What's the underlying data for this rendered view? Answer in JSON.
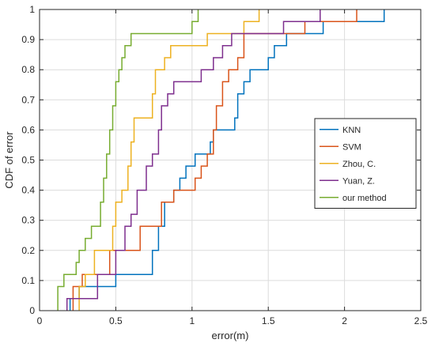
{
  "chart_data": {
    "type": "line",
    "step": true,
    "xlabel": "error(m)",
    "ylabel": "CDF of error",
    "xlim": [
      0,
      2.5
    ],
    "ylim": [
      0,
      1
    ],
    "xticks": [
      "0",
      "0.5",
      "1",
      "1.5",
      "2",
      "2.5"
    ],
    "yticks": [
      "0",
      "0.1",
      "0.2",
      "0.3",
      "0.4",
      "0.5",
      "0.6",
      "0.7",
      "0.8",
      "0.9",
      "1"
    ],
    "grid": true,
    "legend_position": "right",
    "series": [
      {
        "name": "KNN",
        "color": "#0072BD",
        "points": [
          [
            0.2,
            0
          ],
          [
            0.2,
            0.04
          ],
          [
            0.26,
            0.04
          ],
          [
            0.26,
            0.08
          ],
          [
            0.5,
            0.08
          ],
          [
            0.5,
            0.12
          ],
          [
            0.74,
            0.12
          ],
          [
            0.74,
            0.2
          ],
          [
            0.78,
            0.2
          ],
          [
            0.78,
            0.28
          ],
          [
            0.82,
            0.28
          ],
          [
            0.82,
            0.36
          ],
          [
            0.88,
            0.36
          ],
          [
            0.88,
            0.4
          ],
          [
            0.92,
            0.4
          ],
          [
            0.92,
            0.44
          ],
          [
            0.96,
            0.44
          ],
          [
            0.96,
            0.48
          ],
          [
            1.02,
            0.48
          ],
          [
            1.02,
            0.52
          ],
          [
            1.12,
            0.52
          ],
          [
            1.12,
            0.56
          ],
          [
            1.14,
            0.56
          ],
          [
            1.14,
            0.6
          ],
          [
            1.28,
            0.6
          ],
          [
            1.28,
            0.64
          ],
          [
            1.3,
            0.64
          ],
          [
            1.3,
            0.72
          ],
          [
            1.34,
            0.72
          ],
          [
            1.34,
            0.76
          ],
          [
            1.38,
            0.76
          ],
          [
            1.38,
            0.8
          ],
          [
            1.5,
            0.8
          ],
          [
            1.5,
            0.84
          ],
          [
            1.54,
            0.84
          ],
          [
            1.54,
            0.88
          ],
          [
            1.62,
            0.88
          ],
          [
            1.62,
            0.92
          ],
          [
            1.86,
            0.92
          ],
          [
            1.86,
            0.96
          ],
          [
            2.26,
            0.96
          ],
          [
            2.26,
            1
          ]
        ]
      },
      {
        "name": "SVM",
        "color": "#D95319",
        "points": [
          [
            0.22,
            0
          ],
          [
            0.22,
            0.08
          ],
          [
            0.28,
            0.08
          ],
          [
            0.28,
            0.12
          ],
          [
            0.46,
            0.12
          ],
          [
            0.46,
            0.2
          ],
          [
            0.66,
            0.2
          ],
          [
            0.66,
            0.28
          ],
          [
            0.8,
            0.28
          ],
          [
            0.8,
            0.36
          ],
          [
            0.88,
            0.36
          ],
          [
            0.88,
            0.4
          ],
          [
            1.02,
            0.4
          ],
          [
            1.02,
            0.44
          ],
          [
            1.06,
            0.44
          ],
          [
            1.06,
            0.48
          ],
          [
            1.1,
            0.48
          ],
          [
            1.1,
            0.52
          ],
          [
            1.14,
            0.52
          ],
          [
            1.14,
            0.6
          ],
          [
            1.16,
            0.6
          ],
          [
            1.16,
            0.68
          ],
          [
            1.2,
            0.68
          ],
          [
            1.2,
            0.76
          ],
          [
            1.24,
            0.76
          ],
          [
            1.24,
            0.8
          ],
          [
            1.3,
            0.8
          ],
          [
            1.3,
            0.84
          ],
          [
            1.34,
            0.84
          ],
          [
            1.34,
            0.92
          ],
          [
            1.74,
            0.92
          ],
          [
            1.74,
            0.96
          ],
          [
            2.08,
            0.96
          ],
          [
            2.08,
            1
          ]
        ]
      },
      {
        "name": "Zhou, C.",
        "color": "#EDB120",
        "points": [
          [
            0.26,
            0
          ],
          [
            0.26,
            0.08
          ],
          [
            0.3,
            0.08
          ],
          [
            0.3,
            0.12
          ],
          [
            0.36,
            0.12
          ],
          [
            0.36,
            0.2
          ],
          [
            0.48,
            0.2
          ],
          [
            0.48,
            0.28
          ],
          [
            0.5,
            0.28
          ],
          [
            0.5,
            0.36
          ],
          [
            0.54,
            0.36
          ],
          [
            0.54,
            0.4
          ],
          [
            0.58,
            0.4
          ],
          [
            0.58,
            0.48
          ],
          [
            0.6,
            0.48
          ],
          [
            0.6,
            0.56
          ],
          [
            0.62,
            0.56
          ],
          [
            0.62,
            0.64
          ],
          [
            0.74,
            0.64
          ],
          [
            0.74,
            0.72
          ],
          [
            0.76,
            0.72
          ],
          [
            0.76,
            0.8
          ],
          [
            0.82,
            0.8
          ],
          [
            0.82,
            0.84
          ],
          [
            0.86,
            0.84
          ],
          [
            0.86,
            0.88
          ],
          [
            1.1,
            0.88
          ],
          [
            1.1,
            0.92
          ],
          [
            1.34,
            0.92
          ],
          [
            1.34,
            0.96
          ],
          [
            1.44,
            0.96
          ],
          [
            1.44,
            1
          ]
        ]
      },
      {
        "name": "Yuan, Z.",
        "color": "#7E2F8E",
        "points": [
          [
            0.18,
            0
          ],
          [
            0.18,
            0.04
          ],
          [
            0.38,
            0.04
          ],
          [
            0.38,
            0.12
          ],
          [
            0.5,
            0.12
          ],
          [
            0.5,
            0.2
          ],
          [
            0.56,
            0.2
          ],
          [
            0.56,
            0.28
          ],
          [
            0.6,
            0.28
          ],
          [
            0.6,
            0.32
          ],
          [
            0.64,
            0.32
          ],
          [
            0.64,
            0.4
          ],
          [
            0.7,
            0.4
          ],
          [
            0.7,
            0.48
          ],
          [
            0.74,
            0.48
          ],
          [
            0.74,
            0.52
          ],
          [
            0.78,
            0.52
          ],
          [
            0.78,
            0.6
          ],
          [
            0.8,
            0.6
          ],
          [
            0.8,
            0.68
          ],
          [
            0.84,
            0.68
          ],
          [
            0.84,
            0.72
          ],
          [
            0.88,
            0.72
          ],
          [
            0.88,
            0.76
          ],
          [
            1.06,
            0.76
          ],
          [
            1.06,
            0.8
          ],
          [
            1.14,
            0.8
          ],
          [
            1.14,
            0.84
          ],
          [
            1.2,
            0.84
          ],
          [
            1.2,
            0.88
          ],
          [
            1.26,
            0.88
          ],
          [
            1.26,
            0.92
          ],
          [
            1.6,
            0.92
          ],
          [
            1.6,
            0.96
          ],
          [
            1.84,
            0.96
          ],
          [
            1.84,
            1
          ]
        ]
      },
      {
        "name": "our method",
        "color": "#77AC30",
        "points": [
          [
            0.12,
            0
          ],
          [
            0.12,
            0.08
          ],
          [
            0.16,
            0.08
          ],
          [
            0.16,
            0.12
          ],
          [
            0.24,
            0.12
          ],
          [
            0.24,
            0.16
          ],
          [
            0.26,
            0.16
          ],
          [
            0.26,
            0.2
          ],
          [
            0.3,
            0.2
          ],
          [
            0.3,
            0.24
          ],
          [
            0.34,
            0.24
          ],
          [
            0.34,
            0.28
          ],
          [
            0.4,
            0.28
          ],
          [
            0.4,
            0.36
          ],
          [
            0.42,
            0.36
          ],
          [
            0.42,
            0.44
          ],
          [
            0.44,
            0.44
          ],
          [
            0.44,
            0.52
          ],
          [
            0.46,
            0.52
          ],
          [
            0.46,
            0.6
          ],
          [
            0.48,
            0.6
          ],
          [
            0.48,
            0.68
          ],
          [
            0.5,
            0.68
          ],
          [
            0.5,
            0.76
          ],
          [
            0.52,
            0.76
          ],
          [
            0.52,
            0.8
          ],
          [
            0.54,
            0.8
          ],
          [
            0.54,
            0.84
          ],
          [
            0.56,
            0.84
          ],
          [
            0.56,
            0.88
          ],
          [
            0.6,
            0.88
          ],
          [
            0.6,
            0.92
          ],
          [
            1.0,
            0.92
          ],
          [
            1.0,
            0.96
          ],
          [
            1.04,
            0.96
          ],
          [
            1.04,
            1
          ]
        ]
      }
    ]
  }
}
